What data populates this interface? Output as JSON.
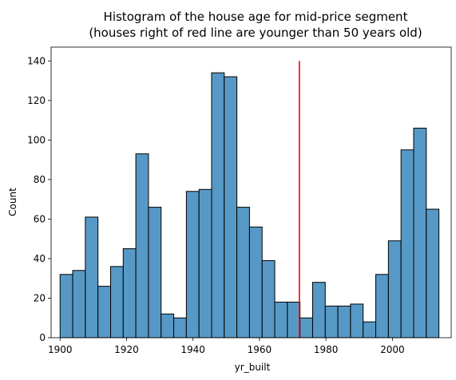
{
  "chart_data": {
    "type": "bar",
    "title": "Histogram of the house age for mid-price segment",
    "subtitle": "(houses right of red line are younger than 50 years old)",
    "xlabel": "yr_built",
    "ylabel": "Count",
    "xlim": [
      1897.3,
      2017.7
    ],
    "ylim": [
      0,
      147
    ],
    "xticks": [
      1900,
      1920,
      1940,
      1960,
      1980,
      2000
    ],
    "yticks": [
      0,
      20,
      40,
      60,
      80,
      100,
      120,
      140
    ],
    "bin_start": 1900,
    "bin_width": 3.8,
    "values": [
      32,
      34,
      61,
      26,
      36,
      45,
      93,
      66,
      12,
      10,
      74,
      75,
      134,
      132,
      66,
      56,
      39,
      18,
      18,
      10,
      28,
      16,
      16,
      17,
      8,
      32,
      49,
      95,
      106,
      65
    ],
    "reference_line": {
      "x": 1972,
      "y_top": 140,
      "color": "#ff0000"
    },
    "bar_color": "#5799c6",
    "bar_edge": "#000000",
    "grid": false
  }
}
